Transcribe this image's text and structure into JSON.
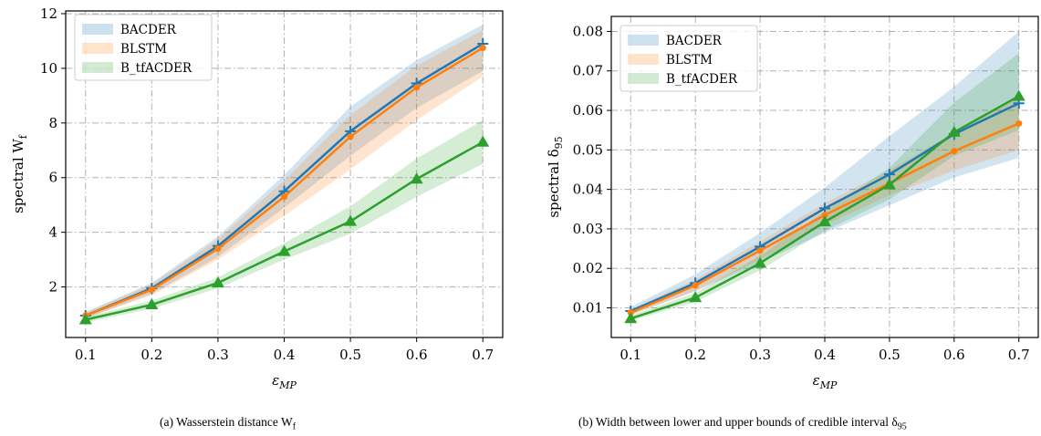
{
  "colors": {
    "BACDER": "#1f77b4",
    "BLSTM": "#ff7f0e",
    "B_tfACDER": "#2ca02c"
  },
  "captions": {
    "left": "(a) Wasserstein distance W",
    "left_sub": "f",
    "right": "(b) Width between lower and upper bounds of credible interval δ",
    "right_sub": "95"
  },
  "chart_data": [
    {
      "type": "line",
      "xlabel": "ε",
      "xlabel_sub": "MP",
      "ylabel": "spectral W",
      "ylabel_sub": "f",
      "xlim": [
        0.07,
        0.73
      ],
      "ylim": [
        0.15,
        12.1
      ],
      "x": [
        0.1,
        0.2,
        0.3,
        0.4,
        0.5,
        0.6,
        0.7
      ],
      "xticks": [
        "0.1",
        "0.2",
        "0.3",
        "0.4",
        "0.5",
        "0.6",
        "0.7"
      ],
      "yticks": [
        2,
        4,
        6,
        8,
        10,
        12
      ],
      "ytick_labels": [
        "2",
        "4",
        "6",
        "8",
        "10",
        "12"
      ],
      "grid": true,
      "legend_position": "top-left",
      "series": [
        {
          "name": "BACDER",
          "marker": "plus",
          "values": [
            0.95,
            1.95,
            3.5,
            5.5,
            7.7,
            9.45,
            10.9
          ],
          "lower": [
            0.85,
            1.75,
            3.1,
            4.9,
            6.8,
            8.55,
            9.9
          ],
          "upper": [
            1.08,
            2.15,
            3.85,
            6.1,
            8.6,
            10.3,
            11.6
          ]
        },
        {
          "name": "BLSTM",
          "marker": "dot",
          "values": [
            0.95,
            1.9,
            3.4,
            5.3,
            7.5,
            9.3,
            10.75
          ],
          "lower": [
            0.85,
            1.7,
            3.0,
            4.6,
            6.3,
            8.1,
            9.7
          ],
          "upper": [
            1.07,
            2.1,
            3.75,
            5.9,
            8.3,
            10.1,
            11.4
          ]
        },
        {
          "name": "B_tfACDER",
          "marker": "triangle",
          "values": [
            0.8,
            1.35,
            2.15,
            3.3,
            4.4,
            5.95,
            7.3
          ],
          "lower": [
            0.7,
            1.2,
            1.95,
            3.0,
            3.95,
            5.3,
            6.5
          ],
          "upper": [
            0.9,
            1.5,
            2.35,
            3.6,
            4.95,
            6.7,
            8.1
          ]
        }
      ]
    },
    {
      "type": "line",
      "xlabel": "ε",
      "xlabel_sub": "MP",
      "ylabel": "spectral δ",
      "ylabel_sub": "95",
      "xlim": [
        0.07,
        0.73
      ],
      "ylim": [
        0.0025,
        0.0838
      ],
      "x": [
        0.1,
        0.2,
        0.3,
        0.4,
        0.5,
        0.6,
        0.7
      ],
      "xticks": [
        "0.1",
        "0.2",
        "0.3",
        "0.4",
        "0.5",
        "0.6",
        "0.7"
      ],
      "yticks": [
        0.01,
        0.02,
        0.03,
        0.04,
        0.05,
        0.06,
        0.07,
        0.08
      ],
      "ytick_labels": [
        "0.01",
        "0.02",
        "0.03",
        "0.04",
        "0.05",
        "0.06",
        "0.07",
        "0.08"
      ],
      "grid": true,
      "legend_position": "top-left",
      "series": [
        {
          "name": "BACDER",
          "marker": "plus",
          "values": [
            0.0092,
            0.0163,
            0.0255,
            0.0352,
            0.0438,
            0.054,
            0.0618
          ],
          "lower": [
            0.0083,
            0.0142,
            0.0215,
            0.029,
            0.036,
            0.043,
            0.048
          ],
          "upper": [
            0.0102,
            0.0185,
            0.029,
            0.0405,
            0.0535,
            0.066,
            0.08
          ]
        },
        {
          "name": "BLSTM",
          "marker": "dot",
          "values": [
            0.0088,
            0.0157,
            0.0245,
            0.0335,
            0.0415,
            0.0497,
            0.0567
          ],
          "lower": [
            0.0081,
            0.0143,
            0.0222,
            0.031,
            0.0385,
            0.0448,
            0.05
          ],
          "upper": [
            0.0096,
            0.0172,
            0.0268,
            0.0365,
            0.0448,
            0.0545,
            0.0632
          ]
        },
        {
          "name": "B_tfACDER",
          "marker": "triangle",
          "values": [
            0.0073,
            0.0126,
            0.0213,
            0.0318,
            0.0412,
            0.0545,
            0.0636
          ],
          "lower": [
            0.0067,
            0.0115,
            0.0195,
            0.0295,
            0.0375,
            0.0485,
            0.055
          ],
          "upper": [
            0.008,
            0.0138,
            0.0232,
            0.0345,
            0.0455,
            0.062,
            0.0745
          ]
        }
      ]
    }
  ]
}
